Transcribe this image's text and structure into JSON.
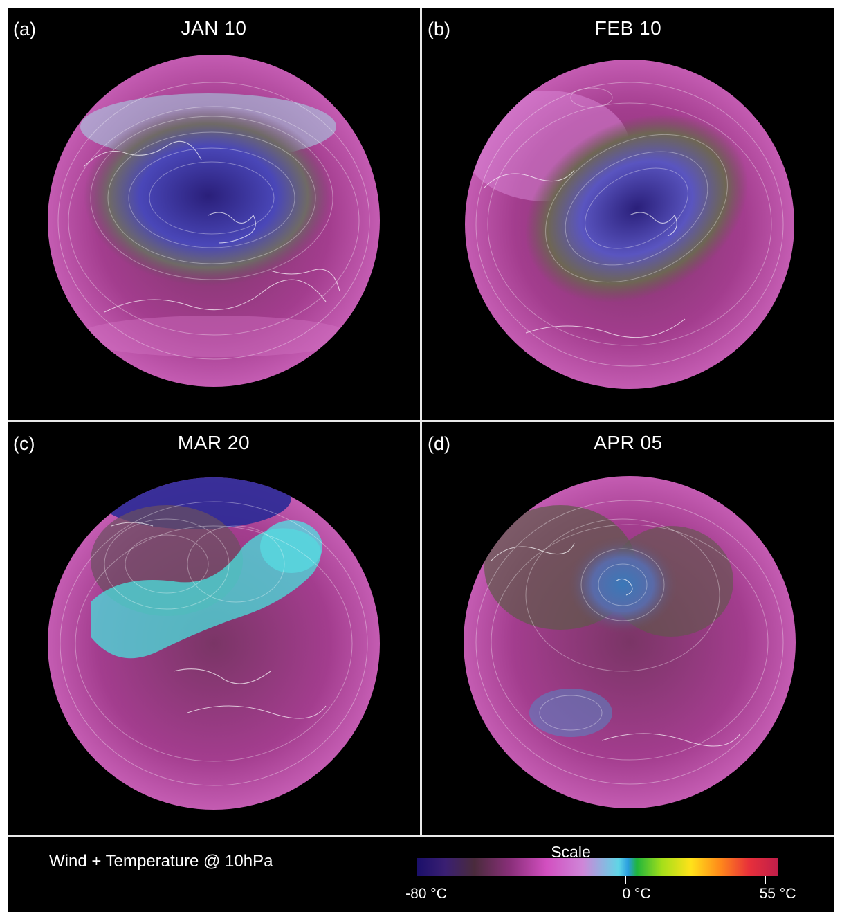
{
  "panels": [
    {
      "letter": "(a)",
      "date": "JAN 10",
      "vortex_color": "#3c36a8",
      "rim_color": "#9fe0ee"
    },
    {
      "letter": "(b)",
      "date": "FEB 10",
      "vortex_color": "#3a2f9a",
      "rim_color": "#d986df"
    },
    {
      "letter": "(c)",
      "date": "MAR 20",
      "vortex_color": "#3fe0e0",
      "rim_color": "#2a2a96"
    },
    {
      "letter": "(d)",
      "date": "APR 05",
      "vortex_color": "#3a6fb0",
      "rim_color": "#c878d0"
    }
  ],
  "footer": {
    "title": "Wind + Temperature @ 10hPa",
    "scale_label": "Scale",
    "ticks": [
      {
        "value": -80,
        "label": "-80 °C"
      },
      {
        "value": 0,
        "label": "0 °C"
      },
      {
        "value": 55,
        "label": "55 °C"
      }
    ]
  },
  "colors": {
    "background": "#000000",
    "globe_base": "#b8409a",
    "divider": "#e8e8e8"
  }
}
